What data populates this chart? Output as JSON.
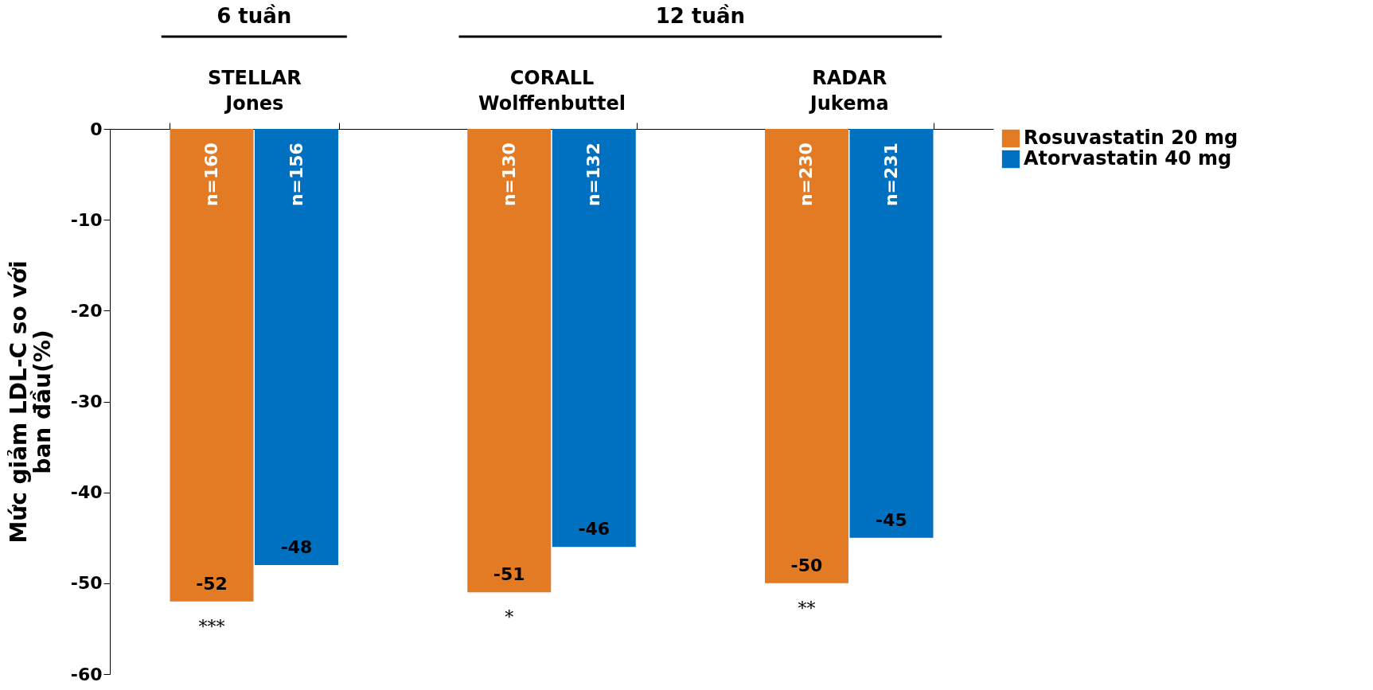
{
  "chart_data": {
    "type": "bar",
    "categories": [
      "STELLAR Jones",
      "CORALL Wolffenbuttel",
      "RADAR Jukema"
    ],
    "series": [
      {
        "name": "Rosuvastatin 20 mg",
        "color": "#e37a24",
        "values": [
          -52,
          -51,
          -50
        ]
      },
      {
        "name": "Atorvastatin 40 mg",
        "color": "#0070c0",
        "values": [
          -48,
          -46,
          -45
        ]
      }
    ],
    "ylabel": "Mức giảm LDL-C so với ban đầu(%)",
    "ylim": [
      -60,
      0
    ],
    "yticks": [
      -60,
      -50,
      -40,
      -30,
      -20,
      -10,
      0
    ],
    "data_labels": true,
    "legend": "right",
    "grid": false,
    "annotations": [
      "6 tuần",
      "12 tuần",
      {
        "text": "n=160",
        "x": "STELLAR Jones",
        "y": -5
      },
      {
        "text": "n=156",
        "x": "STELLAR Jones",
        "y": -5
      },
      {
        "text": "n=130",
        "x": "CORALL Wolffenbuttel",
        "y": -5
      },
      {
        "text": "n=132",
        "x": "CORALL Wolffenbuttel",
        "y": -5
      },
      {
        "text": "n=230",
        "x": "RADAR Jukema",
        "y": -5
      },
      {
        "text": "n=231",
        "x": "RADAR Jukema",
        "y": -5
      },
      "***",
      "*",
      "**"
    ]
  }
}
